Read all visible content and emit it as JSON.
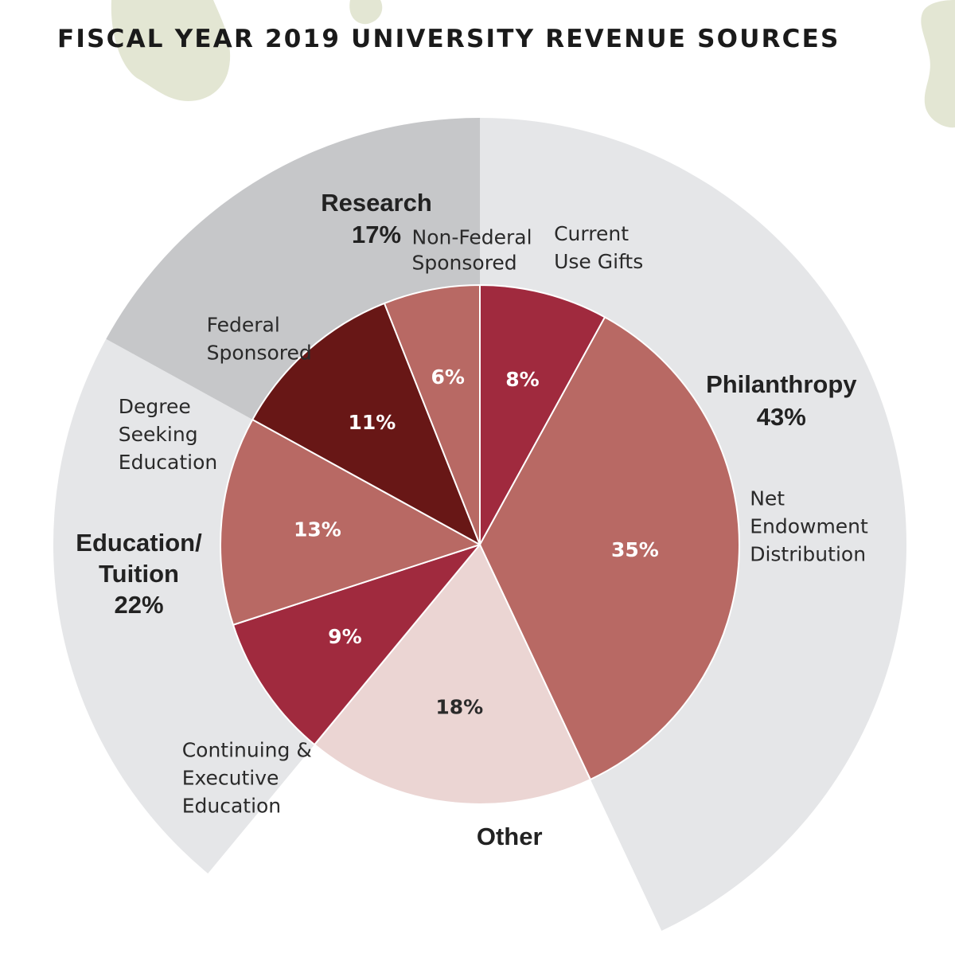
{
  "chart_data": {
    "type": "pie",
    "title": "FISCAL YEAR 2019 UNIVERSITY REVENUE SOURCES",
    "inner_slices": [
      {
        "id": "current-use-gifts",
        "label": "Current Use Gifts",
        "lines": [
          "Current",
          "Use Gifts"
        ],
        "value": 8,
        "value_label": "8%",
        "color": "#a02a3e",
        "text_color": "#ffffff",
        "group": "philanthropy"
      },
      {
        "id": "net-endowment-distribution",
        "label": "Net Endowment Distribution",
        "lines": [
          "Net",
          "Endowment",
          "Distribution"
        ],
        "value": 35,
        "value_label": "35%",
        "color": "#b86964",
        "text_color": "#ffffff",
        "group": "philanthropy"
      },
      {
        "id": "other",
        "label": "Other",
        "lines": [],
        "value": 18,
        "value_label": "18%",
        "color": "#ebd5d3",
        "text_color": "#2a2a2a",
        "group": "other"
      },
      {
        "id": "continuing-executive-education",
        "label": "Continuing & Executive Education",
        "lines": [
          "Continuing &",
          "Executive",
          "Education"
        ],
        "value": 9,
        "value_label": "9%",
        "color": "#a02a3e",
        "text_color": "#ffffff",
        "group": "education"
      },
      {
        "id": "degree-seeking-education",
        "label": "Degree Seeking Education",
        "lines": [
          "Degree",
          "Seeking",
          "Education"
        ],
        "value": 13,
        "value_label": "13%",
        "color": "#b86964",
        "text_color": "#ffffff",
        "group": "education"
      },
      {
        "id": "federal-sponsored",
        "label": "Federal Sponsored",
        "lines": [
          "Federal",
          "Sponsored"
        ],
        "value": 11,
        "value_label": "11%",
        "color": "#681716",
        "text_color": "#ffffff",
        "group": "research"
      },
      {
        "id": "non-federal-sponsored",
        "label": "Non-Federal Sponsored",
        "lines": [
          "Non-Federal",
          "Sponsored"
        ],
        "value": 6,
        "value_label": "6%",
        "color": "#b86964",
        "text_color": "#ffffff",
        "group": "research"
      }
    ],
    "groups": [
      {
        "id": "philanthropy",
        "name": "Philanthropy",
        "value": 43,
        "value_label": "43%",
        "color": "#e5e6e8",
        "lines": [
          "Philanthropy",
          "43%"
        ]
      },
      {
        "id": "other",
        "name": "Other",
        "value": 18,
        "value_label": "",
        "color": "none",
        "lines": [
          "Other"
        ]
      },
      {
        "id": "education",
        "name": "Education/Tuition",
        "value": 22,
        "value_label": "22%",
        "color": "#e5e6e8",
        "lines": [
          "Education/",
          "Tuition",
          "22%"
        ]
      },
      {
        "id": "research",
        "name": "Research",
        "value": 17,
        "value_label": "17%",
        "color": "#c6c7c9",
        "lines": [
          "Research",
          "17%"
        ]
      }
    ],
    "start": "top",
    "direction": "clockwise",
    "decoration_color": "#e3e6d3"
  }
}
